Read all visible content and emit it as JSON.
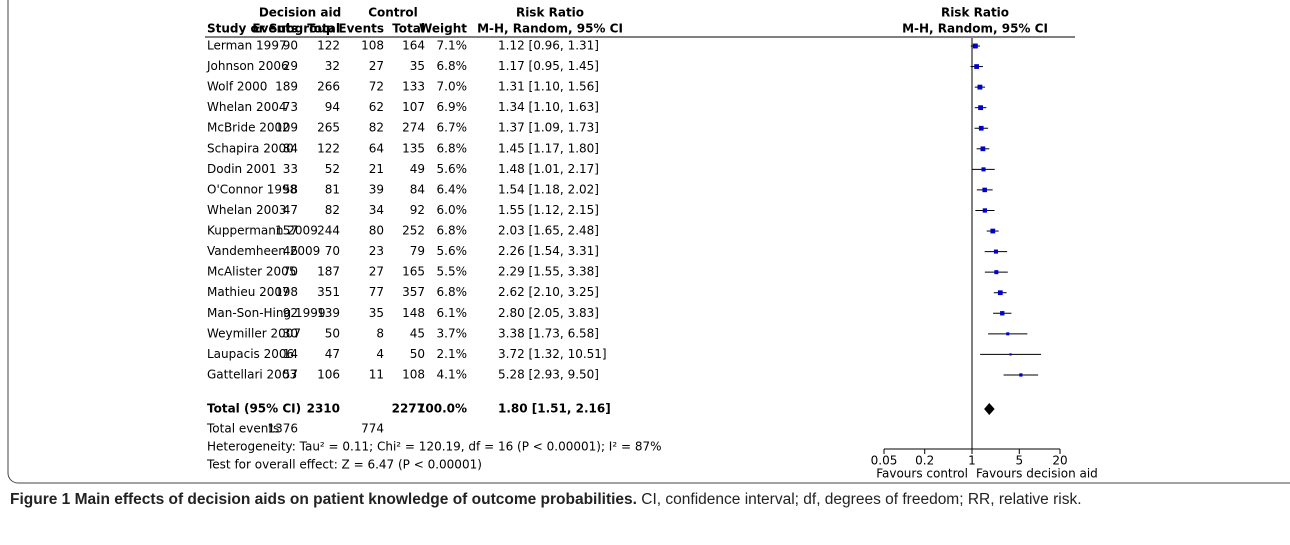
{
  "chart_data": {
    "type": "forest",
    "headers": {
      "group_aid": "Decision aid",
      "group_control": "Control",
      "rr_table": "Risk Ratio",
      "rr_plot": "Risk Ratio",
      "study": "Study or Subgroup",
      "events_aid": "Events",
      "total_aid": "Total",
      "events_control": "Events",
      "total_control": "Total",
      "weight": "Weight",
      "method_table": "M-H, Random, 95% CI",
      "method_plot": "M-H, Random, 95% CI"
    },
    "studies": [
      "Lerman 1997",
      "Johnson 2006",
      "Wolf 2000",
      "Whelan 2004",
      "McBride 2002",
      "Schapira 2000",
      "Dodin 2001",
      "O'Connor 1998",
      "Whelan 2003",
      "Kuppermann 2009",
      "Vandemheen 2009",
      "McAlister 2005",
      "Mathieu 2007",
      "Man-Son-Hing 1999",
      "Weymiller 2007",
      "Laupacis 2006",
      "Gattellari 2003"
    ],
    "events_aid": [
      90,
      29,
      189,
      73,
      109,
      84,
      33,
      58,
      47,
      157,
      46,
      70,
      198,
      92,
      30,
      14,
      57
    ],
    "total_aid": [
      122,
      32,
      266,
      94,
      265,
      122,
      52,
      81,
      82,
      244,
      70,
      187,
      351,
      139,
      50,
      47,
      106
    ],
    "events_control": [
      108,
      27,
      72,
      62,
      82,
      64,
      21,
      39,
      34,
      80,
      23,
      27,
      77,
      35,
      8,
      4,
      11
    ],
    "total_control": [
      164,
      35,
      133,
      107,
      274,
      135,
      49,
      84,
      92,
      252,
      79,
      165,
      357,
      148,
      45,
      50,
      108
    ],
    "weights": [
      7.1,
      6.8,
      7.0,
      6.9,
      6.7,
      6.8,
      5.6,
      6.4,
      6.0,
      6.8,
      5.6,
      5.5,
      6.8,
      6.1,
      3.7,
      2.1,
      4.1
    ],
    "weight_labels": [
      "7.1%",
      "6.8%",
      "7.0%",
      "6.9%",
      "6.7%",
      "6.8%",
      "5.6%",
      "6.4%",
      "6.0%",
      "6.8%",
      "5.6%",
      "5.5%",
      "6.8%",
      "6.1%",
      "3.7%",
      "2.1%",
      "4.1%"
    ],
    "rr": [
      1.12,
      1.17,
      1.31,
      1.34,
      1.37,
      1.45,
      1.48,
      1.54,
      1.55,
      2.03,
      2.26,
      2.29,
      2.62,
      2.8,
      3.38,
      3.72,
      5.28
    ],
    "ci_low": [
      0.96,
      0.95,
      1.1,
      1.1,
      1.09,
      1.17,
      1.01,
      1.18,
      1.12,
      1.65,
      1.54,
      1.55,
      2.1,
      2.05,
      1.73,
      1.32,
      2.93
    ],
    "ci_high": [
      1.31,
      1.45,
      1.56,
      1.63,
      1.73,
      1.8,
      2.17,
      2.02,
      2.15,
      2.48,
      3.31,
      3.38,
      3.25,
      3.83,
      6.58,
      10.51,
      9.5
    ],
    "value_labels": [
      "1.12 [0.96, 1.31]",
      "1.17 [0.95, 1.45]",
      "1.31 [1.10, 1.56]",
      "1.34 [1.10, 1.63]",
      "1.37 [1.09, 1.73]",
      "1.45 [1.17, 1.80]",
      "1.48 [1.01, 2.17]",
      "1.54 [1.18, 2.02]",
      "1.55 [1.12, 2.15]",
      "2.03 [1.65, 2.48]",
      "2.26 [1.54, 3.31]",
      "2.29 [1.55, 3.38]",
      "2.62 [2.10, 3.25]",
      "2.80 [2.05, 3.83]",
      "3.38 [1.73, 6.58]",
      "3.72 [1.32, 10.51]",
      "5.28 [2.93, 9.50]"
    ],
    "total": {
      "label": "Total (95% CI)",
      "total_aid": 2310,
      "total_control": 2277,
      "weight": 100.0,
      "weight_label": "100.0%",
      "rr": 1.8,
      "ci_low": 1.51,
      "ci_high": 2.16,
      "value_label": "1.80 [1.51, 2.16]"
    },
    "total_events": {
      "label": "Total events",
      "aid": 1376,
      "control": 774
    },
    "heterogeneity": "Heterogeneity: Tau² = 0.11; Chi² = 120.19, df = 16 (P < 0.00001); I² = 87%",
    "overall_effect": "Test for overall effect: Z = 6.47 (P < 0.00001)",
    "xscale": "log",
    "xlim": [
      0.05,
      20
    ],
    "xticks": [
      0.05,
      0.2,
      1,
      5,
      20
    ],
    "xlabel_left": "Favours control",
    "xlabel_right": "Favours decision aid",
    "box_color": "#0000cc",
    "line_color": "#000000"
  },
  "caption": {
    "label": "Figure 1",
    "title": "Main effects of decision aids on patient knowledge of outcome probabilities.",
    "text": "CI, confidence interval; df, degrees of freedom; RR, relative risk."
  }
}
